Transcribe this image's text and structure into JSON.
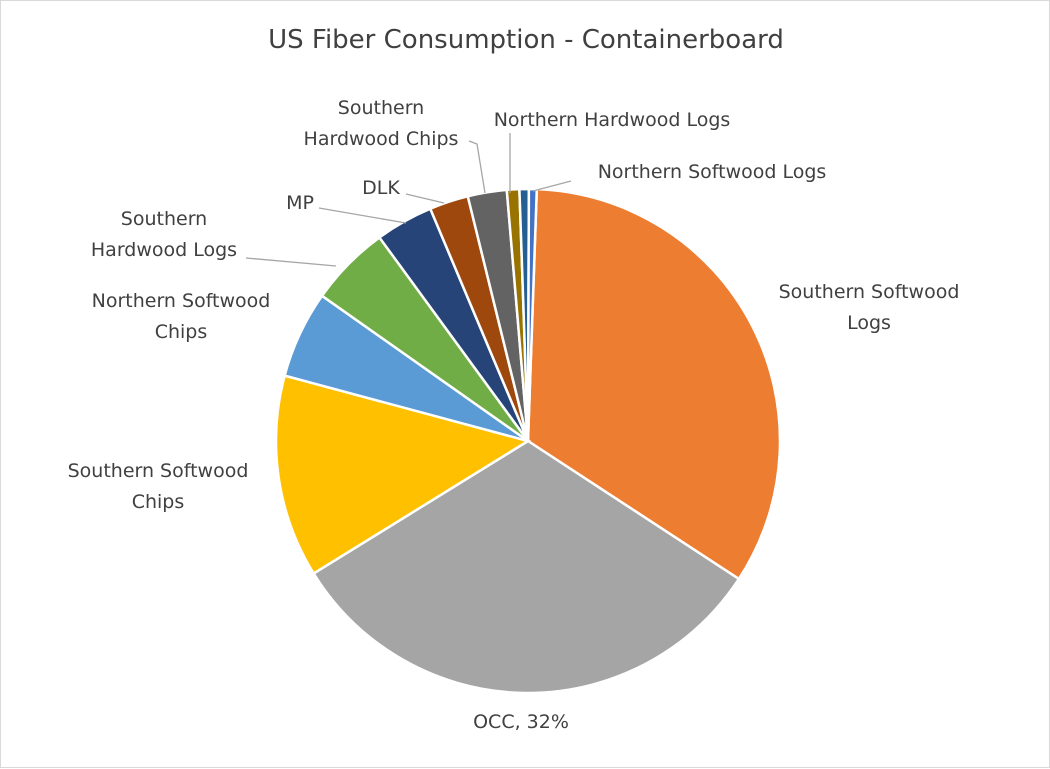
{
  "chart_data": {
    "type": "pie",
    "title": "US Fiber Consumption - Containerboard",
    "slices": [
      {
        "label": "Southern Softwood Logs",
        "value": 33.7,
        "color": "#ED7D31"
      },
      {
        "label": "OCC",
        "value": 32,
        "color": "#A5A5A5",
        "data_label": "OCC, 32%"
      },
      {
        "label": "Southern Softwood Chips",
        "value": 13.0,
        "color": "#FFC000"
      },
      {
        "label": "Northern Softwood Chips",
        "value": 5.6,
        "color": "#5B9BD5"
      },
      {
        "label": "Southern Hardwood Logs",
        "value": 5.2,
        "color": "#70AD47"
      },
      {
        "label": "MP",
        "value": 3.7,
        "color": "#264478"
      },
      {
        "label": "DLK",
        "value": 2.5,
        "color": "#9E480E"
      },
      {
        "label": "Southern Hardwood Chips",
        "value": 2.5,
        "color": "#636363"
      },
      {
        "label": "Northern Hardwood Logs",
        "value": 0.8,
        "color": "#997300"
      },
      {
        "label": "",
        "value": 0.6,
        "color": "#255E91"
      },
      {
        "label": "Northern Softwood Logs",
        "value": 0.5,
        "color": "#4472C4"
      }
    ]
  }
}
